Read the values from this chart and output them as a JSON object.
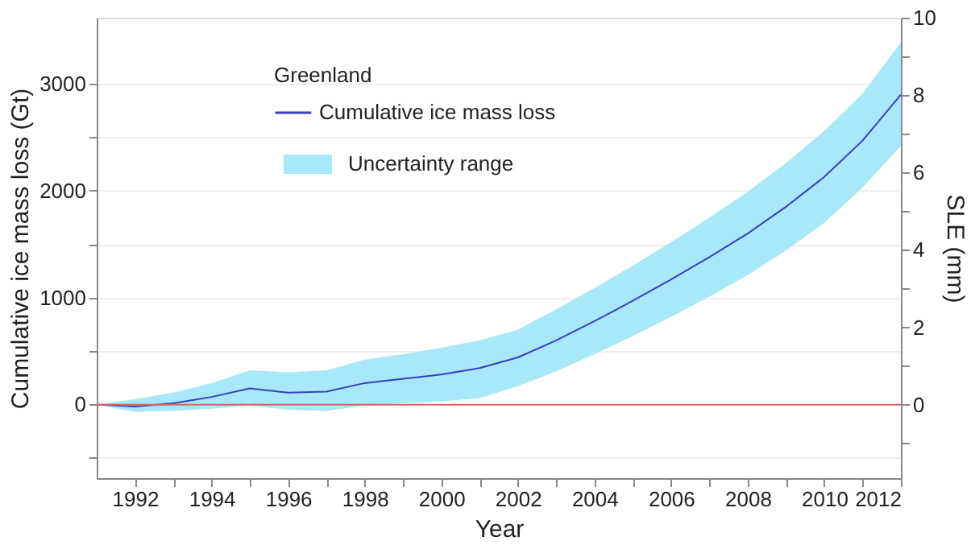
{
  "chart_data": {
    "type": "line",
    "xlabel": "Year",
    "ylabel": "Cumulative ice mass loss (Gt)",
    "y2label": "SLE (mm)",
    "legend_title": "Greenland",
    "x": [
      1991,
      1992,
      1993,
      1994,
      1995,
      1996,
      1997,
      1998,
      1999,
      2000,
      2001,
      2002,
      2003,
      2004,
      2005,
      2006,
      2007,
      2008,
      2009,
      2010,
      2011,
      2012
    ],
    "series": [
      {
        "name": "Cumulative ice mass loss",
        "color": "#3a3fbf",
        "values": [
          0,
          -20,
          10,
          70,
          150,
          110,
          120,
          200,
          240,
          280,
          340,
          440,
          600,
          780,
          970,
          1170,
          1380,
          1600,
          1850,
          2130,
          2470,
          2900
        ],
        "lower": [
          0,
          -70,
          -60,
          -40,
          -10,
          -50,
          -60,
          -10,
          10,
          30,
          60,
          170,
          310,
          470,
          640,
          820,
          1010,
          1210,
          1440,
          1700,
          2030,
          2420
        ],
        "upper": [
          0,
          50,
          110,
          200,
          320,
          300,
          320,
          420,
          470,
          530,
          600,
          700,
          890,
          1090,
          1300,
          1520,
          1750,
          1990,
          2260,
          2560,
          2910,
          3390
        ]
      }
    ],
    "annotations": [
      "Uncertainty range"
    ],
    "xlim": [
      1991,
      2012
    ],
    "xticks": [
      1992,
      {
        "value": 1993,
        "label": null
      },
      1994,
      {
        "value": 1995,
        "label": null
      },
      1996,
      {
        "value": 1997,
        "label": null
      },
      1998,
      {
        "value": 1999,
        "label": null
      },
      2000,
      {
        "value": 2001,
        "label": null
      },
      2002,
      {
        "value": 2003,
        "label": null
      },
      2004,
      {
        "value": 2005,
        "label": null
      },
      2006,
      {
        "value": 2007,
        "label": null
      },
      2008,
      {
        "value": 2009,
        "label": null
      },
      2010,
      {
        "value": 2011,
        "label": null
      },
      2012
    ],
    "ylim": [
      -690,
      3620
    ],
    "yticks": [
      {
        "value": -500,
        "label": null
      },
      0,
      {
        "value": 500,
        "label": null
      },
      1000,
      {
        "value": 1500,
        "label": null
      },
      2000,
      {
        "value": 2500,
        "label": null
      },
      3000
    ],
    "y2lim": [
      -1.9,
      10
    ],
    "y2ticks": [
      {
        "value": -1,
        "label": null
      },
      0,
      {
        "value": 1,
        "label": null
      },
      2,
      {
        "value": 3,
        "label": null
      },
      4,
      {
        "value": 5,
        "label": null
      },
      6,
      {
        "value": 7,
        "label": null
      },
      8,
      {
        "value": 9,
        "label": null
      },
      10
    ],
    "ref_lines": [
      {
        "axis": "y2",
        "value": 0,
        "color": "#e06060"
      }
    ],
    "grid": "y",
    "legend": "top"
  }
}
